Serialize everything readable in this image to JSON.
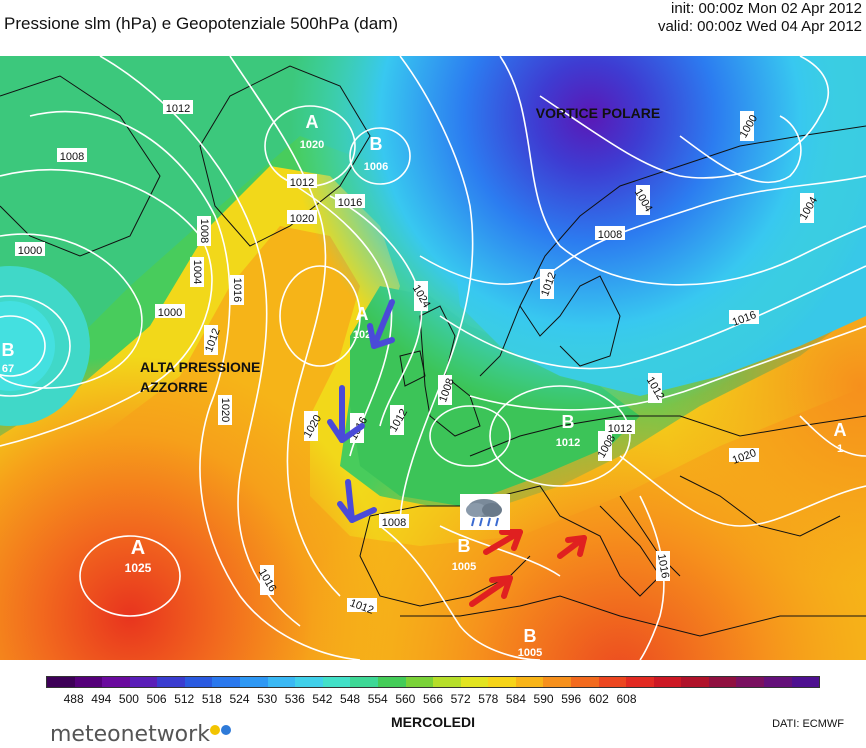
{
  "header": {
    "title": "Pressione slm (hPa) e Geopotenziale 500hPa (dam)",
    "init": "init: 00:00z Mon 02 Apr 2012",
    "valid": "valid: 00:00z Wed 04 Apr 2012"
  },
  "map": {
    "annotations": {
      "vortice": "VORTICE POLARE",
      "alta_line1": "ALTA PRESSIONE",
      "alta_line2": "AZZORRE"
    },
    "centers": [
      {
        "letter": "A",
        "value": "1020"
      },
      {
        "letter": "B",
        "value": "1006"
      },
      {
        "letter": "A",
        "value": "1025"
      },
      {
        "letter": "A",
        "value": "102"
      },
      {
        "letter": "B",
        "value": "1012"
      },
      {
        "letter": "B",
        "value": "1005"
      },
      {
        "letter": "B",
        "value": "1005"
      },
      {
        "letter": "B",
        "value": "67"
      },
      {
        "letter": "A",
        "value": "1"
      }
    ],
    "isobar_labels": [
      "1012",
      "1008",
      "1012",
      "1016",
      "1000",
      "1008",
      "1004",
      "1000",
      "1016",
      "1020",
      "1012",
      "1020",
      "1024",
      "1020",
      "1016",
      "1012",
      "1008",
      "1004",
      "1008",
      "1012",
      "1016",
      "1000",
      "1004",
      "1012",
      "1008",
      "1020",
      "1008",
      "1012",
      "1016",
      "1012",
      "1016"
    ],
    "weather_icon": "rain-cloud-icon"
  },
  "colorbar": {
    "ticks": [
      "488",
      "494",
      "500",
      "506",
      "512",
      "518",
      "524",
      "530",
      "536",
      "542",
      "548",
      "554",
      "560",
      "566",
      "572",
      "578",
      "584",
      "590",
      "596",
      "602",
      "608"
    ],
    "colors": [
      "#3d0057",
      "#55007a",
      "#6a0a9e",
      "#5a1eb8",
      "#3a3cd0",
      "#2a5ae0",
      "#2a78ee",
      "#2e98f4",
      "#3ab8f4",
      "#40d0ea",
      "#42e0c8",
      "#3ed896",
      "#44cc58",
      "#7ad238",
      "#b6de2a",
      "#e2e420",
      "#f6d418",
      "#f8b418",
      "#f6901c",
      "#f26a1e",
      "#ec4620",
      "#e22a22",
      "#cc1824",
      "#b0122a",
      "#901040",
      "#7a1060",
      "#64107a",
      "#4e1090"
    ]
  },
  "footer": {
    "day": "MERCOLEDI",
    "dati": "DATI:  ECMWF",
    "logo": "meteonetwork"
  }
}
